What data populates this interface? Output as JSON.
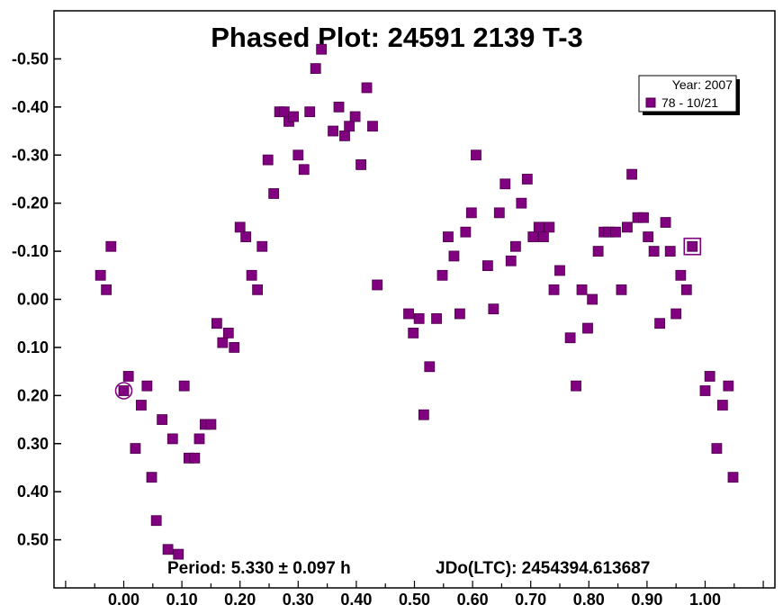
{
  "chart_data": {
    "type": "scatter",
    "title": "Phased Plot: 24591 2139 T-3",
    "footer": {
      "period": "Period: 5.330 ± 0.097 h",
      "epoch": "JDo(LTC): 2454394.613687"
    },
    "legend": {
      "header": "Year: 2007",
      "entry": "78 - 10/21",
      "placement": "top-right"
    },
    "colors": {
      "marker": "#800080",
      "marker_edge": "#4b0048",
      "axes": "#000000",
      "background": "#ffffff"
    },
    "xlim": [
      -0.12,
      1.12
    ],
    "ylim": [
      0.6,
      -0.6
    ],
    "y_inverted": true,
    "grid": false,
    "x_ticks": [
      "0.00",
      "0.10",
      "0.20",
      "0.30",
      "0.40",
      "0.50",
      "0.60",
      "0.70",
      "0.80",
      "0.90",
      "1.00"
    ],
    "x_tick_values": [
      0.0,
      0.1,
      0.2,
      0.3,
      0.4,
      0.5,
      0.6,
      0.7,
      0.8,
      0.9,
      1.0
    ],
    "y_ticks": [
      "-0.50",
      "-0.40",
      "-0.30",
      "-0.20",
      "-0.10",
      "0.00",
      "0.10",
      "0.20",
      "0.30",
      "0.40",
      "0.50"
    ],
    "y_tick_values": [
      -0.5,
      -0.4,
      -0.3,
      -0.2,
      -0.1,
      0.0,
      0.1,
      0.2,
      0.3,
      0.4,
      0.5
    ],
    "series": [
      {
        "name": "78 - 10/21",
        "marker": "square",
        "x": [
          -0.04,
          -0.03,
          -0.022,
          0.0,
          0.008,
          0.02,
          0.03,
          0.04,
          0.048,
          0.056,
          0.066,
          0.076,
          0.084,
          0.094,
          0.104,
          0.112,
          0.122,
          0.13,
          0.14,
          0.15,
          0.16,
          0.17,
          0.18,
          0.19,
          0.2,
          0.21,
          0.22,
          0.23,
          0.238,
          0.248,
          0.258,
          0.268,
          0.276,
          0.284,
          0.292,
          0.3,
          0.31,
          0.32,
          0.33,
          0.34,
          0.36,
          0.37,
          0.38,
          0.388,
          0.398,
          0.408,
          0.418,
          0.428,
          0.436,
          0.49,
          0.498,
          0.508,
          0.516,
          0.526,
          0.538,
          0.548,
          0.558,
          0.568,
          0.578,
          0.588,
          0.598,
          0.606,
          0.626,
          0.636,
          0.646,
          0.656,
          0.666,
          0.674,
          0.684,
          0.694,
          0.704,
          0.714,
          0.722,
          0.732,
          0.74,
          0.75,
          0.768,
          0.778,
          0.788,
          0.798,
          0.806,
          0.816,
          0.826,
          0.834,
          0.846,
          0.856,
          0.866,
          0.874,
          0.884,
          0.894,
          0.902,
          0.912,
          0.922,
          0.932,
          0.94,
          0.95,
          0.958,
          0.968,
          0.978,
          1.0,
          1.008,
          1.02,
          1.03,
          1.04,
          1.048
        ],
        "y": [
          -0.05,
          -0.02,
          -0.11,
          0.19,
          0.16,
          0.31,
          0.22,
          0.18,
          0.37,
          0.46,
          0.25,
          0.52,
          0.29,
          0.53,
          0.18,
          0.33,
          0.33,
          0.29,
          0.26,
          0.26,
          0.05,
          0.09,
          0.07,
          0.1,
          -0.15,
          -0.13,
          -0.05,
          -0.02,
          -0.11,
          -0.29,
          -0.22,
          -0.39,
          -0.39,
          -0.37,
          -0.38,
          -0.3,
          -0.27,
          -0.39,
          -0.48,
          -0.52,
          -0.35,
          -0.4,
          -0.34,
          -0.36,
          -0.38,
          -0.28,
          -0.44,
          -0.36,
          -0.03,
          0.03,
          0.07,
          0.04,
          0.24,
          0.14,
          0.04,
          -0.05,
          -0.13,
          -0.09,
          0.03,
          -0.14,
          -0.18,
          -0.3,
          -0.07,
          0.02,
          -0.18,
          -0.24,
          -0.08,
          -0.11,
          -0.2,
          -0.25,
          -0.13,
          -0.15,
          -0.13,
          -0.15,
          -0.02,
          -0.06,
          0.08,
          0.18,
          -0.02,
          0.06,
          0.0,
          -0.1,
          -0.14,
          -0.14,
          -0.14,
          -0.02,
          -0.15,
          -0.26,
          -0.17,
          -0.17,
          -0.13,
          -0.1,
          0.05,
          -0.16,
          -0.1,
          0.03,
          -0.05,
          -0.02,
          -0.11,
          0.19,
          0.16,
          0.31,
          0.22,
          0.18,
          0.37
        ]
      }
    ],
    "highlighted_points": [
      {
        "marker": "circle",
        "x": 0.0,
        "y": 0.19
      },
      {
        "marker": "square",
        "x": 0.978,
        "y": -0.11
      }
    ]
  }
}
